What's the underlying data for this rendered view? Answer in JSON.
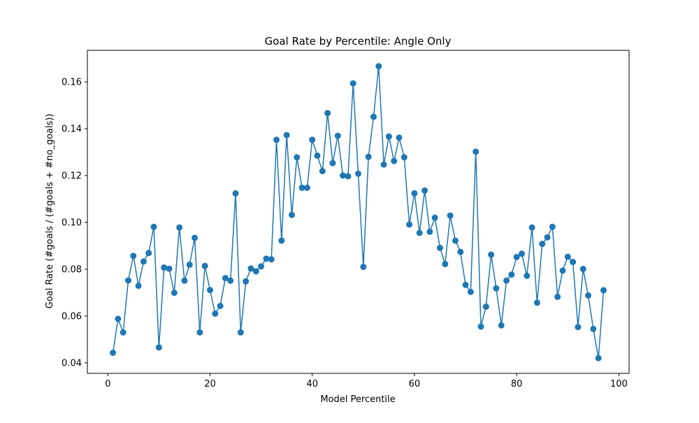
{
  "colors": {
    "series": "#1f77b4",
    "axes": "#000000",
    "background": "#ffffff"
  },
  "chart_data": {
    "type": "line",
    "title": "Goal Rate by Percentile: Angle Only",
    "xlabel": "Model Percentile",
    "ylabel": "Goal Rate (#goals / (#goals + #no_goals))",
    "xlim": [
      -4,
      102
    ],
    "ylim": [
      0.0355,
      0.1735
    ],
    "xticks": [
      0,
      20,
      40,
      60,
      80,
      100
    ],
    "xtick_labels": [
      "0",
      "20",
      "40",
      "60",
      "80",
      "100"
    ],
    "yticks": [
      0.04,
      0.06,
      0.08,
      0.1,
      0.12,
      0.14,
      0.16
    ],
    "ytick_labels": [
      "0.04",
      "0.06",
      "0.08",
      "0.10",
      "0.12",
      "0.14",
      "0.16"
    ],
    "grid": false,
    "legend": "none",
    "markers": "circle",
    "x": [
      1,
      2,
      3,
      4,
      5,
      6,
      7,
      8,
      9,
      10,
      11,
      12,
      13,
      14,
      15,
      16,
      17,
      18,
      19,
      20,
      21,
      22,
      23,
      24,
      25,
      26,
      27,
      28,
      29,
      30,
      31,
      32,
      33,
      34,
      35,
      36,
      37,
      38,
      39,
      40,
      41,
      42,
      43,
      44,
      45,
      46,
      47,
      48,
      49,
      50,
      51,
      52,
      53,
      54,
      55,
      56,
      57,
      58,
      59,
      60,
      61,
      62,
      63,
      64,
      65,
      66,
      67,
      68,
      69,
      70,
      71,
      72,
      73,
      74,
      75,
      76,
      77,
      78,
      79,
      80,
      81,
      82,
      83,
      84,
      85,
      86,
      87,
      88,
      89,
      90,
      91,
      92,
      93,
      94,
      95,
      96,
      97
    ],
    "y": [
      0.0443,
      0.0588,
      0.053,
      0.0752,
      0.0857,
      0.0729,
      0.0833,
      0.0869,
      0.0981,
      0.0466,
      0.0807,
      0.0802,
      0.0699,
      0.0978,
      0.0751,
      0.0819,
      0.0934,
      0.053,
      0.0814,
      0.0711,
      0.061,
      0.0643,
      0.0762,
      0.0751,
      0.1124,
      0.053,
      0.0748,
      0.0803,
      0.0791,
      0.0812,
      0.0845,
      0.0842,
      0.1353,
      0.0922,
      0.1373,
      0.1032,
      0.1278,
      0.1148,
      0.1148,
      0.1353,
      0.1285,
      0.1219,
      0.1467,
      0.1253,
      0.137,
      0.12,
      0.1197,
      0.1594,
      0.1208,
      0.081,
      0.128,
      0.1451,
      0.1667,
      0.1247,
      0.1367,
      0.1262,
      0.1362,
      0.1278,
      0.0991,
      0.1124,
      0.0955,
      0.1136,
      0.096,
      0.102,
      0.0891,
      0.0822,
      0.1029,
      0.0922,
      0.0874,
      0.0733,
      0.0703,
      0.1302,
      0.0555,
      0.064,
      0.0862,
      0.0718,
      0.056,
      0.0751,
      0.0777,
      0.0852,
      0.0866,
      0.0772,
      0.0978,
      0.0657,
      0.0908,
      0.0936,
      0.0981,
      0.0682,
      0.0794,
      0.0853,
      0.0831,
      0.0553,
      0.0801,
      0.0688,
      0.0545,
      0.042,
      0.071
    ]
  }
}
